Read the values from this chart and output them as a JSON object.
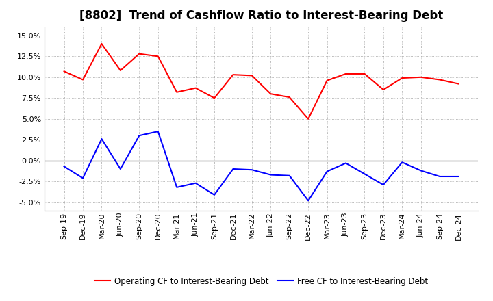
{
  "title": "[8802]  Trend of Cashflow Ratio to Interest-Bearing Debt",
  "x_labels": [
    "Sep-19",
    "Dec-19",
    "Mar-20",
    "Jun-20",
    "Sep-20",
    "Dec-20",
    "Mar-21",
    "Jun-21",
    "Sep-21",
    "Dec-21",
    "Mar-22",
    "Jun-22",
    "Sep-22",
    "Dec-22",
    "Mar-23",
    "Jun-23",
    "Sep-23",
    "Dec-23",
    "Mar-24",
    "Jun-24",
    "Sep-24",
    "Dec-24"
  ],
  "operating_cf": [
    10.7,
    9.7,
    14.0,
    10.8,
    12.8,
    12.5,
    8.2,
    8.7,
    7.5,
    10.3,
    10.2,
    8.0,
    7.6,
    5.0,
    9.6,
    10.4,
    10.4,
    8.5,
    9.9,
    10.0,
    9.7,
    9.2
  ],
  "free_cf": [
    -0.7,
    -2.1,
    2.6,
    -1.0,
    3.0,
    3.5,
    -3.2,
    -2.7,
    -4.1,
    -1.0,
    -1.1,
    -1.7,
    -1.8,
    -4.8,
    -1.3,
    -0.3,
    -1.6,
    -2.9,
    -0.2,
    -1.2,
    -1.9,
    -1.9
  ],
  "operating_cf_color": "#FF0000",
  "free_cf_color": "#0000FF",
  "ylim": [
    -6.0,
    16.0
  ],
  "yticks": [
    -5.0,
    -2.5,
    0.0,
    2.5,
    5.0,
    7.5,
    10.0,
    12.5,
    15.0
  ],
  "background_color": "#FFFFFF",
  "plot_bg_color": "#FFFFFF",
  "grid_color": "#999999",
  "legend_op_label": "Operating CF to Interest-Bearing Debt",
  "legend_free_label": "Free CF to Interest-Bearing Debt",
  "title_fontsize": 12,
  "tick_fontsize": 8,
  "legend_fontsize": 8.5
}
